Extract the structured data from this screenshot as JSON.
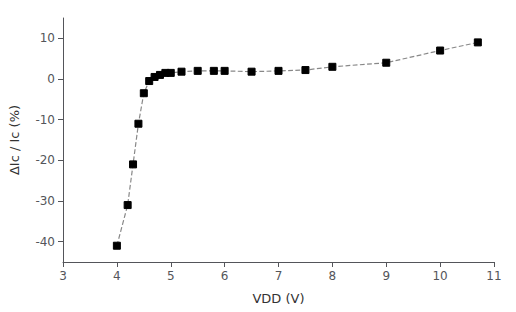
{
  "chart_data": {
    "type": "line",
    "x": [
      4.0,
      4.2,
      4.3,
      4.4,
      4.5,
      4.6,
      4.7,
      4.8,
      4.9,
      5.0,
      5.2,
      5.5,
      5.8,
      6.0,
      6.5,
      7.0,
      7.5,
      8.0,
      9.0,
      10.0,
      10.7
    ],
    "values": [
      -41,
      -31,
      -21,
      -11,
      -3.5,
      -0.5,
      0.5,
      1.0,
      1.5,
      1.5,
      1.8,
      2.0,
      2.0,
      2.0,
      1.8,
      2.0,
      2.2,
      3.0,
      4.0,
      7.0,
      9.0
    ],
    "xlabel": "VDD (V)",
    "ylabel": "ΔIc / Ic (%)",
    "xlim": [
      3,
      11
    ],
    "ylim": [
      -45,
      15
    ],
    "xticks": [
      3,
      4,
      5,
      6,
      7,
      8,
      9,
      10,
      11
    ],
    "yticks": [
      -40,
      -30,
      -20,
      -10,
      0,
      10
    ],
    "marker": "square",
    "line_style": "dashed",
    "color": "#888888",
    "colors": [
      "black",
      "black",
      "black",
      "black",
      "black",
      "black",
      "black",
      "black",
      "black",
      "black",
      "black",
      "black",
      "black",
      "black",
      "black",
      "black",
      "black",
      "black",
      "black",
      "black",
      "black"
    ],
    "grid": false
  }
}
